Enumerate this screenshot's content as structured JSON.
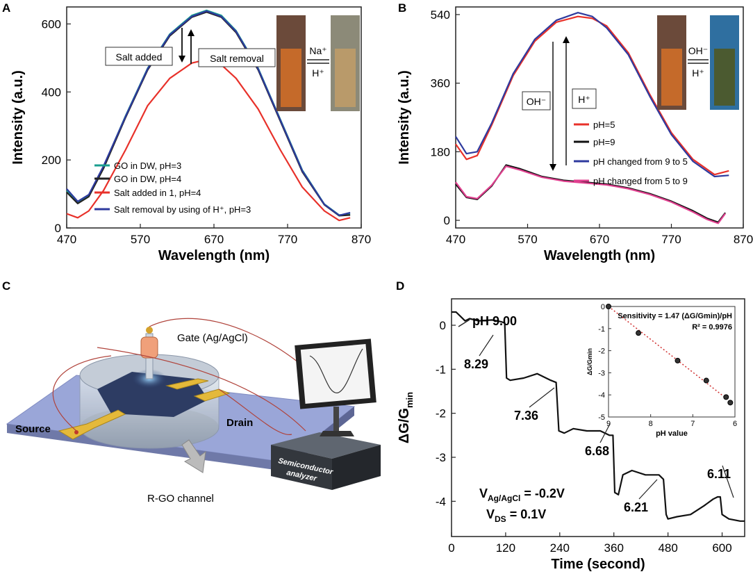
{
  "panels": {
    "a": "A",
    "b": "B",
    "c": "C",
    "d": "D"
  },
  "chart_data": [
    {
      "panel": "A",
      "type": "line",
      "xlabel": "Wavelength (nm)",
      "ylabel": "Intensity (a.u.)",
      "xlim": [
        470,
        870
      ],
      "ylim": [
        0,
        650
      ],
      "xticks": [
        470,
        570,
        670,
        770,
        870
      ],
      "yticks": [
        0,
        200,
        400,
        600
      ],
      "annotations": {
        "salt_added": "Salt added",
        "salt_removal": "Salt removal",
        "na_ion": "Na⁺",
        "h_ion": "H⁺"
      },
      "series": [
        {
          "name": "GO in DW, pH=3",
          "color": "#1a9e8f",
          "x": [
            470,
            485,
            500,
            520,
            550,
            580,
            610,
            640,
            660,
            680,
            700,
            730,
            760,
            790,
            820,
            840,
            855
          ],
          "y": [
            110,
            75,
            95,
            180,
            330,
            470,
            570,
            625,
            640,
            625,
            580,
            470,
            320,
            170,
            70,
            38,
            40
          ]
        },
        {
          "name": "GO in DW, pH=4",
          "color": "#222222",
          "x": [
            470,
            485,
            500,
            520,
            550,
            580,
            610,
            640,
            660,
            680,
            700,
            730,
            760,
            790,
            820,
            840,
            855
          ],
          "y": [
            105,
            72,
            92,
            175,
            325,
            465,
            565,
            620,
            635,
            620,
            575,
            465,
            315,
            165,
            68,
            36,
            38
          ]
        },
        {
          "name": "Salt added in 1, pH=4",
          "color": "#e8312a",
          "x": [
            470,
            485,
            500,
            520,
            550,
            580,
            610,
            640,
            660,
            680,
            700,
            730,
            760,
            790,
            820,
            840,
            855
          ],
          "y": [
            42,
            30,
            50,
            110,
            230,
            360,
            440,
            485,
            495,
            480,
            440,
            350,
            230,
            120,
            50,
            22,
            30
          ]
        },
        {
          "name": "Salt removal by using of H⁺, pH=3",
          "color": "#2e3a9e",
          "x": [
            470,
            485,
            500,
            520,
            550,
            580,
            610,
            640,
            660,
            680,
            700,
            730,
            760,
            790,
            820,
            840,
            855
          ],
          "y": [
            115,
            78,
            98,
            182,
            328,
            468,
            568,
            622,
            638,
            622,
            578,
            468,
            318,
            168,
            69,
            37,
            45
          ]
        }
      ]
    },
    {
      "panel": "B",
      "type": "line",
      "xlabel": "Wavelength (nm)",
      "ylabel": "Intensity (a.u.)",
      "xlim": [
        470,
        870
      ],
      "ylim": [
        -20,
        560
      ],
      "xticks": [
        470,
        570,
        670,
        770,
        870
      ],
      "yticks": [
        0,
        180,
        360,
        540
      ],
      "annotations": {
        "oh_label": "OH⁻",
        "h_label": "H⁺",
        "oh_ion": "OH⁻",
        "h_ion": "H⁺"
      },
      "series": [
        {
          "name": "pH=5",
          "color": "#e8312a",
          "x": [
            470,
            485,
            500,
            520,
            550,
            580,
            610,
            640,
            660,
            680,
            710,
            740,
            770,
            800,
            830,
            850
          ],
          "y": [
            200,
            160,
            170,
            250,
            380,
            470,
            520,
            535,
            530,
            510,
            440,
            330,
            230,
            160,
            120,
            130
          ]
        },
        {
          "name": "pH=9",
          "color": "#111111",
          "x": [
            470,
            485,
            500,
            520,
            540,
            560,
            590,
            620,
            650,
            680,
            710,
            740,
            770,
            800,
            820,
            835,
            845
          ],
          "y": [
            95,
            60,
            55,
            90,
            145,
            135,
            115,
            105,
            100,
            95,
            85,
            70,
            50,
            25,
            5,
            -5,
            20
          ]
        },
        {
          "name": "pH changed from 9 to 5",
          "color": "#2e3a9e",
          "x": [
            470,
            485,
            500,
            520,
            550,
            580,
            610,
            640,
            660,
            680,
            710,
            740,
            770,
            800,
            830,
            850
          ],
          "y": [
            220,
            175,
            180,
            255,
            385,
            475,
            525,
            545,
            535,
            505,
            435,
            325,
            225,
            155,
            115,
            118
          ]
        },
        {
          "name": "pH changed from 5 to 9",
          "color": "#e0408f",
          "x": [
            470,
            485,
            500,
            520,
            540,
            560,
            590,
            620,
            650,
            680,
            710,
            740,
            770,
            800,
            820,
            835,
            845
          ],
          "y": [
            100,
            62,
            57,
            92,
            142,
            132,
            113,
            103,
            98,
            93,
            83,
            68,
            48,
            22,
            2,
            -8,
            18
          ]
        }
      ]
    },
    {
      "panel": "D",
      "type": "line",
      "xlabel": "Time (second)",
      "ylabel": "ΔG/Gmin",
      "xlim": [
        0,
        650
      ],
      "ylim": [
        -4.8,
        0.6
      ],
      "xticks": [
        0,
        120,
        240,
        360,
        480,
        600
      ],
      "yticks": [
        0,
        -1,
        -2,
        -3,
        -4
      ],
      "annotations": {
        "ph_start": "pH 9.00",
        "levels": [
          "8.29",
          "7.36",
          "6.68",
          "6.21",
          "6.11"
        ],
        "vgs": "V",
        "vgs_sub": "Ag/AgCl",
        "vgs_val": " = -0.2V",
        "vds": "V",
        "vds_sub": "DS",
        "vds_val": " = 0.1V"
      },
      "series": [
        {
          "name": "response",
          "color": "#111111",
          "x": [
            0,
            10,
            20,
            30,
            40,
            60,
            90,
            110,
            118,
            122,
            130,
            160,
            190,
            220,
            232,
            238,
            250,
            270,
            300,
            330,
            350,
            358,
            362,
            370,
            380,
            400,
            430,
            460,
            470,
            476,
            480,
            500,
            530,
            560,
            580,
            590,
            596,
            600,
            615,
            640,
            650
          ],
          "y": [
            0.3,
            0.3,
            0.2,
            0.1,
            0.15,
            0.1,
            0.12,
            0.08,
            0.05,
            -1.2,
            -1.25,
            -1.2,
            -1.1,
            -1.25,
            -1.3,
            -2.4,
            -2.45,
            -2.35,
            -2.4,
            -2.4,
            -2.5,
            -2.5,
            -3.8,
            -3.85,
            -3.4,
            -3.3,
            -3.4,
            -3.4,
            -3.5,
            -4.3,
            -4.4,
            -4.35,
            -4.3,
            -4.1,
            -3.95,
            -3.9,
            -3.9,
            -4.3,
            -4.4,
            -4.45,
            -4.45
          ]
        }
      ],
      "inset": {
        "type": "scatter",
        "xlabel": "pH value",
        "ylabel": "ΔG/Gmin",
        "xlim": [
          9,
          6
        ],
        "ylim": [
          -5,
          0
        ],
        "xticks": [
          9,
          8,
          7,
          6
        ],
        "yticks": [
          0,
          -1,
          -2,
          -3,
          -4,
          -5
        ],
        "sensitivity_text": "Sensitivity = 1.47 (ΔG/Gmin)/pH",
        "r2_text": "R² = 0.9976",
        "points": [
          [
            9.0,
            0.0
          ],
          [
            8.29,
            -1.2
          ],
          [
            7.36,
            -2.45
          ],
          [
            6.68,
            -3.35
          ],
          [
            6.21,
            -4.1
          ],
          [
            6.11,
            -4.35
          ]
        ],
        "fit": [
          [
            9.0,
            0.0
          ],
          [
            6.11,
            -4.3
          ]
        ]
      }
    }
  ],
  "diagram_c": {
    "gate": "Gate (Ag/AgCl)",
    "source": "Source",
    "drain": "Drain",
    "channel": "R-GO channel",
    "analyzer_line1": "Semiconductor",
    "analyzer_line2": "analyzer"
  }
}
